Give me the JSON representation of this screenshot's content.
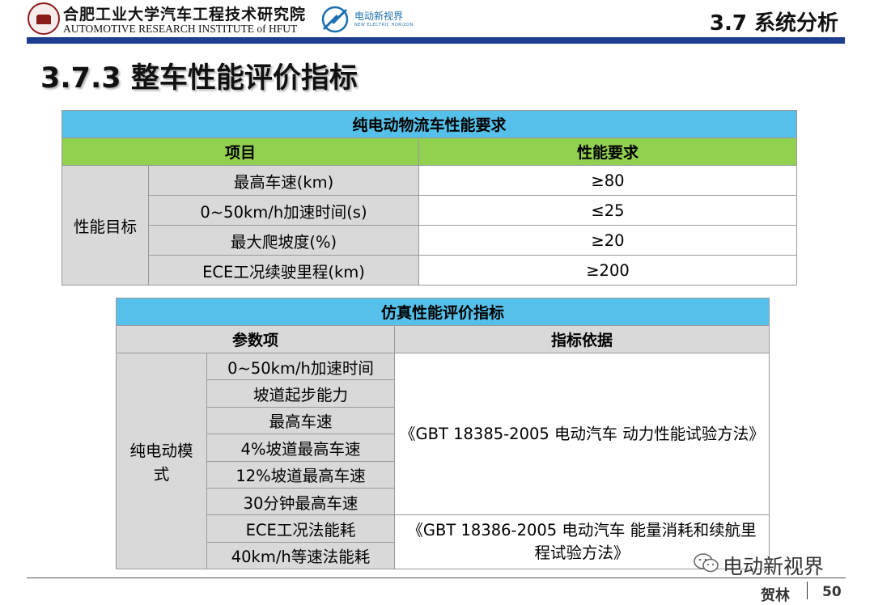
{
  "header": {
    "university_cn": "合肥工业大学汽车工程技术研究院",
    "university_en": "AUTOMOTIVE RESEARCH INSTITUTE of HFUT",
    "brand_cn": "电动新视界",
    "brand_en": "NEW ELECTRIC HORIZON",
    "section": "3.7 系统分析"
  },
  "page_title": "3.7.3 整车性能评价指标",
  "table1": {
    "title": "纯电动物流车性能要求",
    "col_item": "项目",
    "col_req": "性能要求",
    "group": "性能目标",
    "rows": [
      {
        "item": "最高车速(km)",
        "req": "≥80"
      },
      {
        "item": "0~50km/h加速时间(s)",
        "req": "≤25"
      },
      {
        "item": "最大爬坡度(%)",
        "req": "≥20"
      },
      {
        "item": "ECE工况续驶里程(km)",
        "req": "≥200"
      }
    ]
  },
  "table2": {
    "title": "仿真性能评价指标",
    "col_param": "参数项",
    "col_basis": "指标依据",
    "group": "纯电动模式",
    "rows": [
      "0~50km/h加速时间",
      "坡道起步能力",
      "最高车速",
      "4%坡道最高车速",
      "12%坡道最高车速",
      "30分钟最高车速",
      "ECE工况法能耗",
      "40km/h等速法能耗"
    ],
    "basis1": "《GBT 18385-2005 电动汽车 动力性能试验方法》",
    "basis2": "《GBT 18386-2005 电动汽车 能量消耗和续航里程试验方法》"
  },
  "footer": {
    "watermark": "电动新视界",
    "author": "贺林",
    "page": "50"
  },
  "colors": {
    "title_bar": "#55c0e9",
    "green_header": "#92d050",
    "grey_cell": "#d9d9d9",
    "top_bar": "#1f3d8f"
  }
}
